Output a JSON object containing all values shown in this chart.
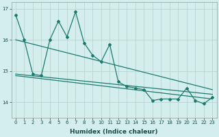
{
  "x": [
    0,
    1,
    2,
    3,
    4,
    5,
    6,
    7,
    8,
    9,
    10,
    11,
    12,
    13,
    14,
    15,
    16,
    17,
    18,
    19,
    20,
    21,
    22,
    23
  ],
  "y_main": [
    16.8,
    16.0,
    14.9,
    14.85,
    16.0,
    16.6,
    16.1,
    16.9,
    15.9,
    15.5,
    15.3,
    15.85,
    14.65,
    14.5,
    14.45,
    14.4,
    14.05,
    14.1,
    14.1,
    14.1,
    14.45,
    14.05,
    13.95,
    14.15
  ],
  "trend1_x": [
    0,
    23
  ],
  "trend1_y": [
    16.0,
    14.4
  ],
  "trend2_x": [
    0,
    23
  ],
  "trend2_y": [
    14.9,
    14.25
  ],
  "trend3_x": [
    0,
    23
  ],
  "trend3_y": [
    14.85,
    14.1
  ],
  "ylim": [
    13.5,
    17.2
  ],
  "xlim": [
    -0.5,
    23.5
  ],
  "yticks": [
    14,
    15,
    16,
    17
  ],
  "xticks": [
    0,
    1,
    2,
    3,
    4,
    5,
    6,
    7,
    8,
    9,
    10,
    11,
    12,
    13,
    14,
    15,
    16,
    17,
    18,
    19,
    20,
    21,
    22,
    23
  ],
  "xlabel": "Humidex (Indice chaleur)",
  "line_color": "#1a7a6e",
  "bg_color": "#d4eeed",
  "grid_color": "#b8d4d0",
  "marker": "D",
  "marker_size": 2.0,
  "line_width": 0.9,
  "tick_fontsize": 5.0,
  "xlabel_fontsize": 6.5
}
